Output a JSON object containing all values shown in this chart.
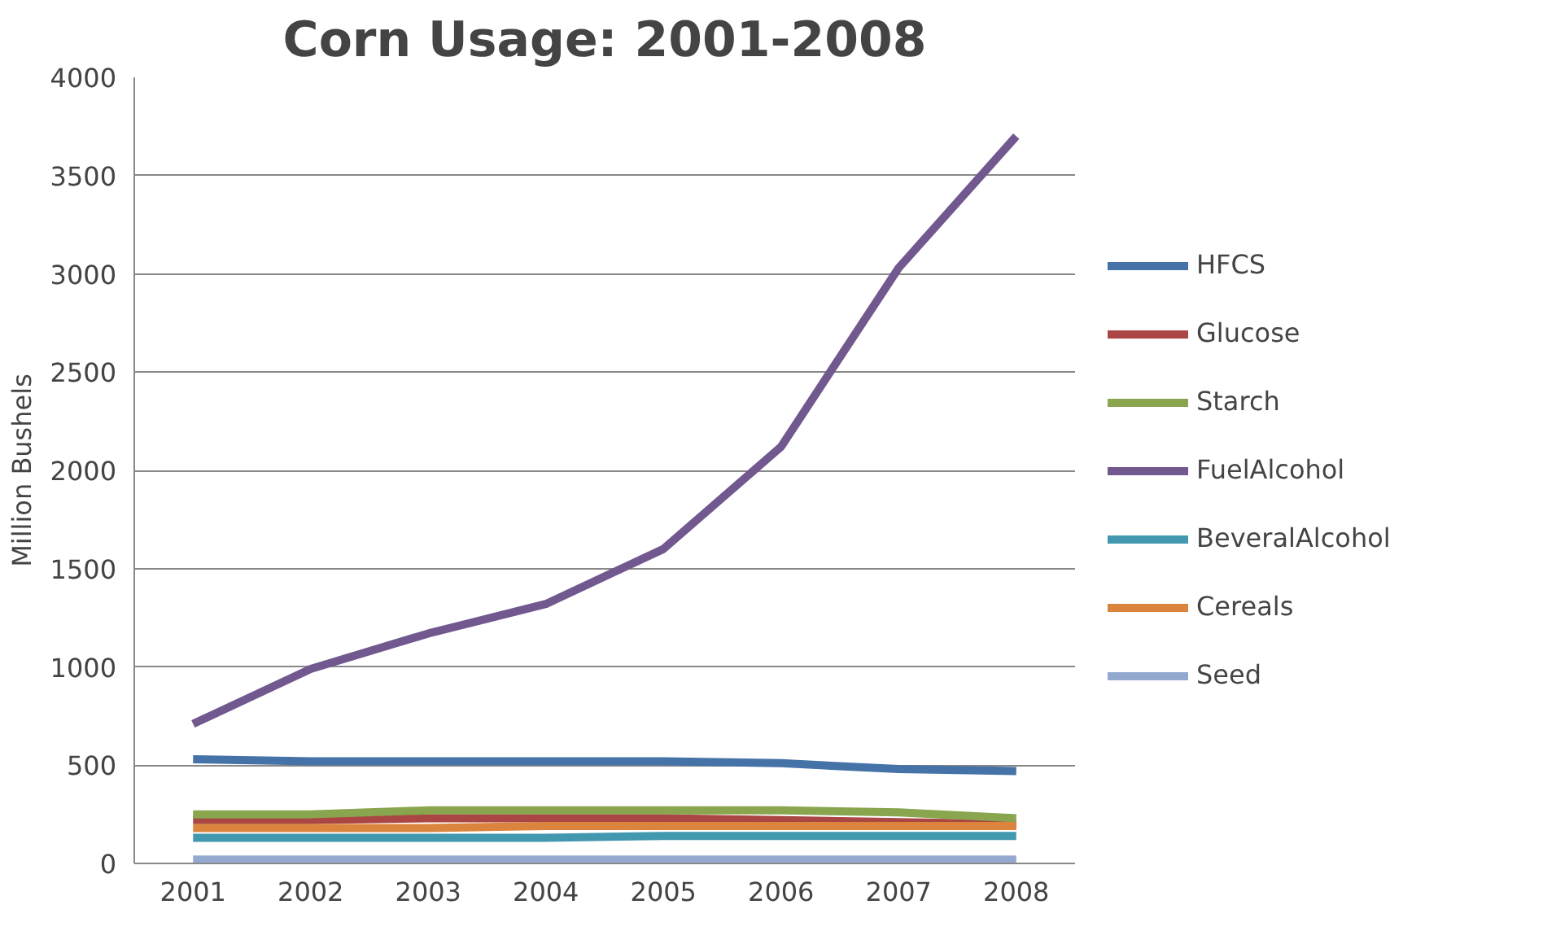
{
  "chart_data": {
    "type": "line",
    "title": "Corn Usage: 2001-2008",
    "ylabel": "Million Bushels",
    "categories": [
      "2001",
      "2002",
      "2003",
      "2004",
      "2005",
      "2006",
      "2007",
      "2008"
    ],
    "ylim": [
      0,
      4000
    ],
    "yticks": [
      0,
      500,
      1000,
      1500,
      2000,
      2500,
      3000,
      3500,
      4000
    ],
    "grid": "y",
    "legend": "right",
    "marker": "none",
    "line_style": "solid",
    "series": [
      {
        "name": "HFCS",
        "color": "#4572a7",
        "values": [
          530,
          520,
          520,
          520,
          520,
          510,
          480,
          470
        ]
      },
      {
        "name": "Glucose",
        "color": "#aa4643",
        "values": [
          220,
          220,
          230,
          230,
          230,
          220,
          210,
          200
        ]
      },
      {
        "name": "Starch",
        "color": "#89a54e",
        "values": [
          250,
          250,
          270,
          270,
          270,
          270,
          260,
          230
        ]
      },
      {
        "name": "FuelAlcohol",
        "color": "#71588f",
        "values": [
          710,
          990,
          1170,
          1320,
          1600,
          2120,
          3030,
          3700
        ]
      },
      {
        "name": "BeveralAlcohol",
        "color": "#4198af",
        "values": [
          130,
          130,
          130,
          130,
          140,
          140,
          140,
          140
        ]
      },
      {
        "name": "Cereals",
        "color": "#db843d",
        "values": [
          180,
          180,
          180,
          190,
          190,
          190,
          190,
          190
        ]
      },
      {
        "name": "Seed",
        "color": "#93a9cf",
        "values": [
          20,
          20,
          20,
          20,
          20,
          20,
          20,
          20
        ]
      }
    ]
  }
}
